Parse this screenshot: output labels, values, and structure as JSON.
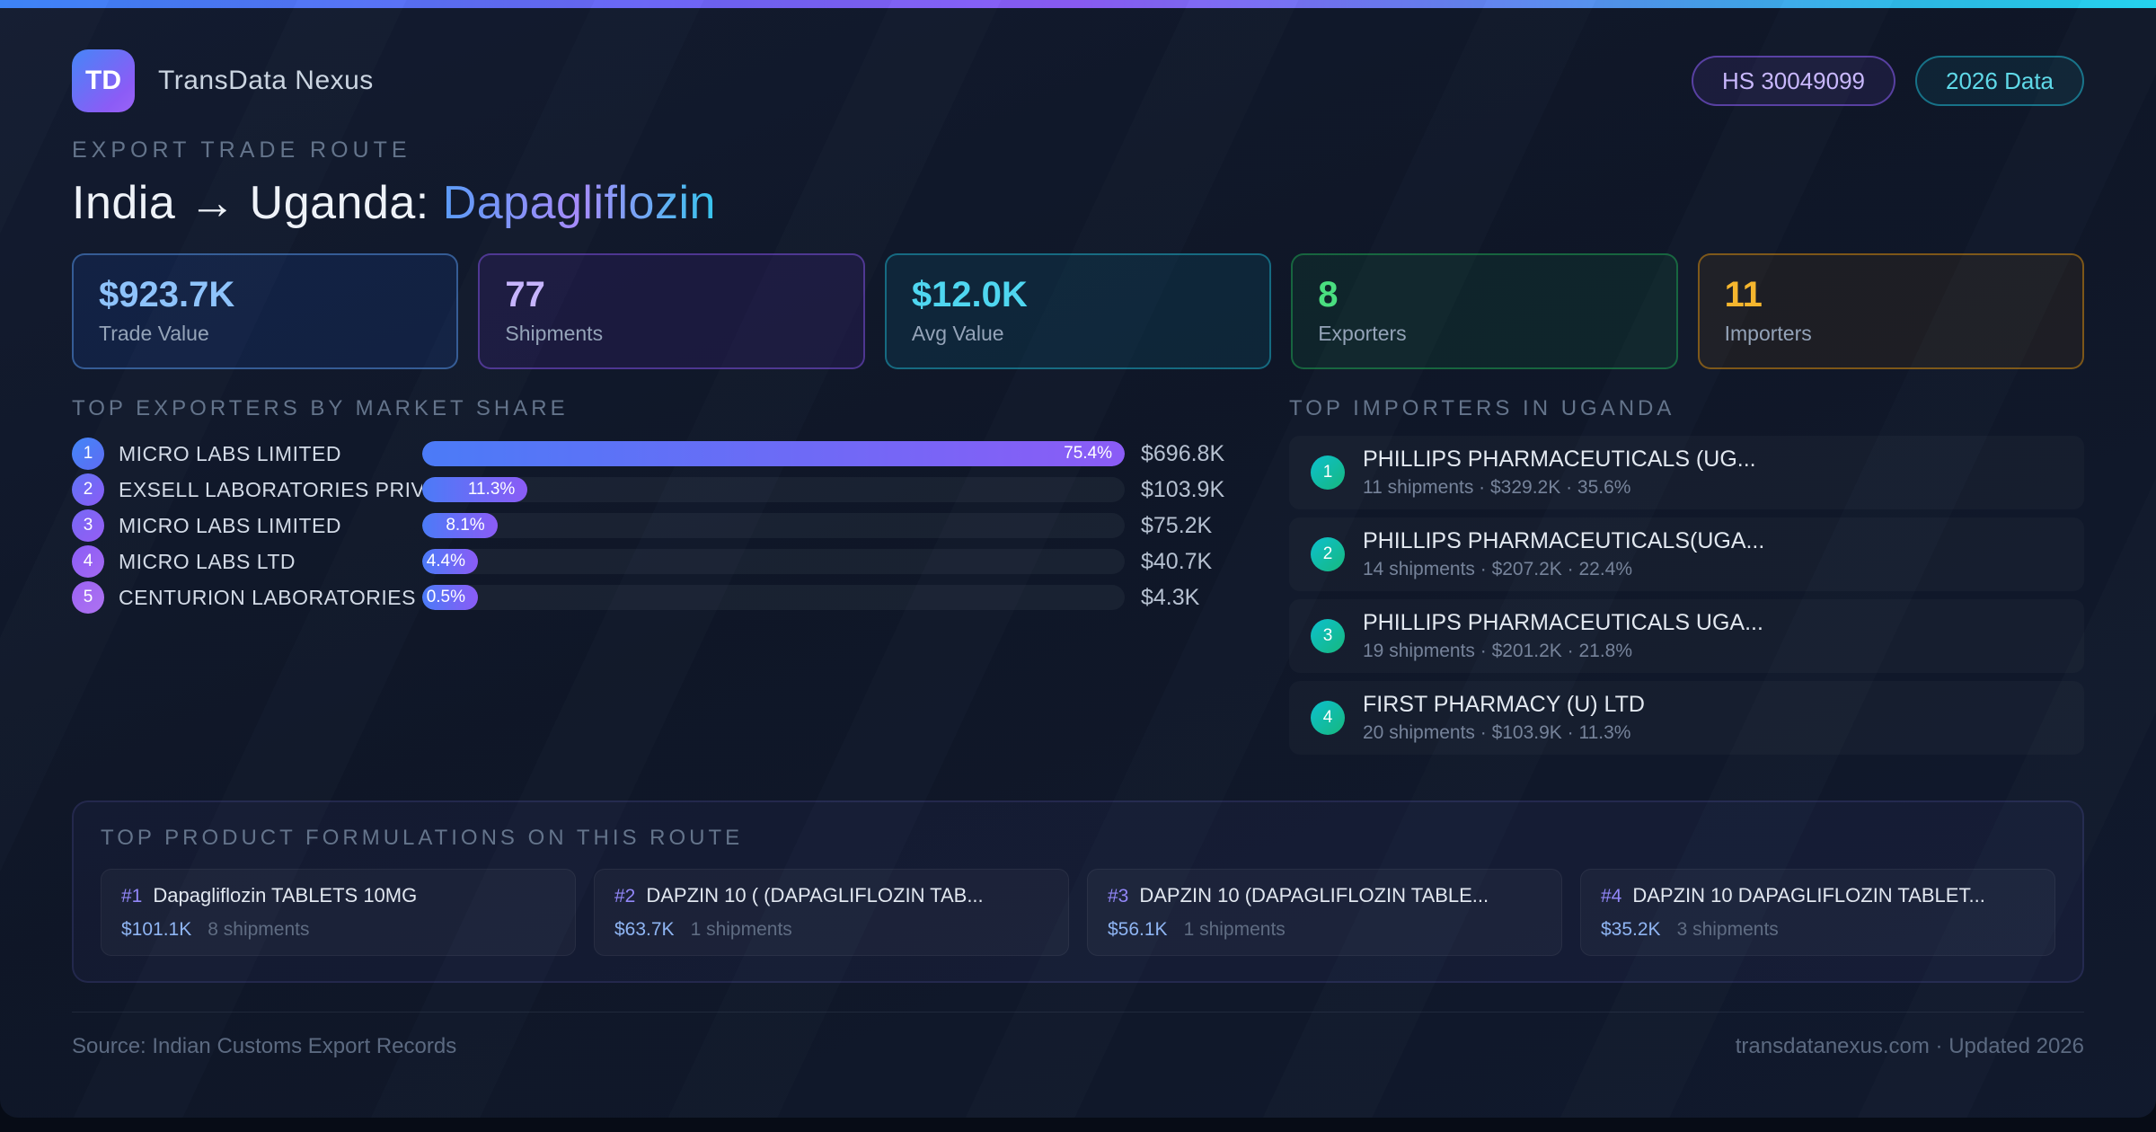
{
  "header": {
    "logo_text": "TD",
    "app_name": "TransData Nexus",
    "badges": [
      {
        "label": "HS 30049099",
        "style": "purple"
      },
      {
        "label": "2026 Data",
        "style": "cyan"
      }
    ]
  },
  "hero": {
    "eyebrow": "EXPORT TRADE ROUTE",
    "title_prefix": "India → Uganda: ",
    "title_highlight": "Dapagliflozin"
  },
  "stats": [
    {
      "value": "$923.7K",
      "label": "Trade Value"
    },
    {
      "value": "77",
      "label": "Shipments"
    },
    {
      "value": "$12.0K",
      "label": "Avg Value"
    },
    {
      "value": "8",
      "label": "Exporters"
    },
    {
      "value": "11",
      "label": "Importers"
    }
  ],
  "exporters": {
    "heading": "TOP EXPORTERS BY MARKET SHARE",
    "rows": [
      {
        "rank": "1",
        "name": "MICRO LABS LIMITED",
        "share_pct": 75.4,
        "share_label": "75.4%",
        "value": "$696.8K"
      },
      {
        "rank": "2",
        "name": "EXSELL LABORATORIES PRIVAT...",
        "share_pct": 11.3,
        "share_label": "11.3%",
        "value": "$103.9K"
      },
      {
        "rank": "3",
        "name": "MICRO LABS LIMITED",
        "share_pct": 8.1,
        "share_label": "8.1%",
        "value": "$75.2K"
      },
      {
        "rank": "4",
        "name": "MICRO LABS LTD",
        "share_pct": 4.4,
        "share_label": "4.4%",
        "value": "$40.7K"
      },
      {
        "rank": "5",
        "name": "CENTURION LABORATORIES PRI...",
        "share_pct": 0.5,
        "share_label": "0.5%",
        "value": "$4.3K"
      }
    ]
  },
  "importers": {
    "heading": "TOP IMPORTERS IN UGANDA",
    "rows": [
      {
        "rank": "1",
        "name": "PHILLIPS PHARMACEUTICALS (UG...",
        "meta": "11 shipments · $329.2K · 35.6%"
      },
      {
        "rank": "2",
        "name": "PHILLIPS PHARMACEUTICALS(UGA...",
        "meta": "14 shipments · $207.2K · 22.4%"
      },
      {
        "rank": "3",
        "name": "PHILLIPS PHARMACEUTICALS UGA...",
        "meta": "19 shipments · $201.2K · 21.8%"
      },
      {
        "rank": "4",
        "name": "FIRST PHARMACY (U) LTD",
        "meta": "20 shipments · $103.9K · 11.3%"
      }
    ]
  },
  "products": {
    "heading": "TOP PRODUCT FORMULATIONS ON THIS ROUTE",
    "cards": [
      {
        "rank": "#1",
        "name": "Dapagliflozin TABLETS 10MG",
        "value": "$101.1K",
        "shipments": "8 shipments"
      },
      {
        "rank": "#2",
        "name": "DAPZIN 10 ( (DAPAGLIFLOZIN TAB...",
        "value": "$63.7K",
        "shipments": "1 shipments"
      },
      {
        "rank": "#3",
        "name": "DAPZIN 10 (DAPAGLIFLOZIN TABLE...",
        "value": "$56.1K",
        "shipments": "1 shipments"
      },
      {
        "rank": "#4",
        "name": "DAPZIN 10 DAPAGLIFLOZIN TABLET...",
        "value": "$35.2K",
        "shipments": "3 shipments"
      }
    ]
  },
  "footer": {
    "source": "Source: Indian Customs Export Records",
    "site": "transdatanexus.com · Updated 2026"
  },
  "colors": {
    "topbar_gradient": [
      "#3b82f6",
      "#8b5cf6",
      "#22d3ee"
    ],
    "bar_gradient": [
      "#4b7bf7",
      "#8b5cf6"
    ],
    "title_highlight_gradient": [
      "#5b9cf8",
      "#a78bfa",
      "#37c5ee"
    ],
    "exporter_rank_gradients": [
      [
        "#4286f7",
        "#5f6cf3"
      ],
      [
        "#5f74f5",
        "#8b5cf6"
      ],
      [
        "#7668f5",
        "#955ef4"
      ],
      [
        "#8b5ef6",
        "#a468f2"
      ],
      [
        "#9a63f4",
        "#ae72f0"
      ]
    ],
    "importer_badge_gradient": [
      "#0cc0ce",
      "#17b87d"
    ],
    "stat_themes": [
      {
        "value": "#8ec3fb",
        "border": "rgba(96,165,250,0.45)",
        "bg": "rgba(37,99,235,0.12)"
      },
      {
        "value": "#c6b4fd",
        "border": "rgba(139,92,246,0.45)",
        "bg": "rgba(109,40,217,0.12)"
      },
      {
        "value": "#4fd6f0",
        "border": "rgba(34,211,238,0.40)",
        "bg": "rgba(8,145,178,0.12)"
      },
      {
        "value": "#4ade80",
        "border": "rgba(34,197,94,0.40)",
        "bg": "rgba(22,163,74,0.10)"
      },
      {
        "value": "#f5b62e",
        "border": "rgba(245,158,11,0.45)",
        "bg": "rgba(161,98,7,0.10)"
      }
    ]
  },
  "chart_data": {
    "type": "bar",
    "orientation": "horizontal",
    "title": "TOP EXPORTERS BY MARKET SHARE",
    "categories": [
      "MICRO LABS LIMITED",
      "EXSELL LABORATORIES PRIVAT...",
      "MICRO LABS LIMITED",
      "MICRO LABS LTD",
      "CENTURION LABORATORIES PRI..."
    ],
    "series": [
      {
        "name": "Market share (%)",
        "values": [
          75.4,
          11.3,
          8.1,
          4.4,
          0.5
        ]
      },
      {
        "name": "Trade value (USD thousands)",
        "values": [
          696.8,
          103.9,
          75.2,
          40.7,
          4.3
        ]
      }
    ],
    "value_labels": [
      "$696.8K",
      "$103.9K",
      "$75.2K",
      "$40.7K",
      "$4.3K"
    ],
    "xlabel": "",
    "ylabel": "",
    "xlim": [
      0,
      75.4
    ],
    "grid": false,
    "legend_position": "none",
    "note": "bar widths normalized to the largest share (75.4% renders full width)"
  }
}
